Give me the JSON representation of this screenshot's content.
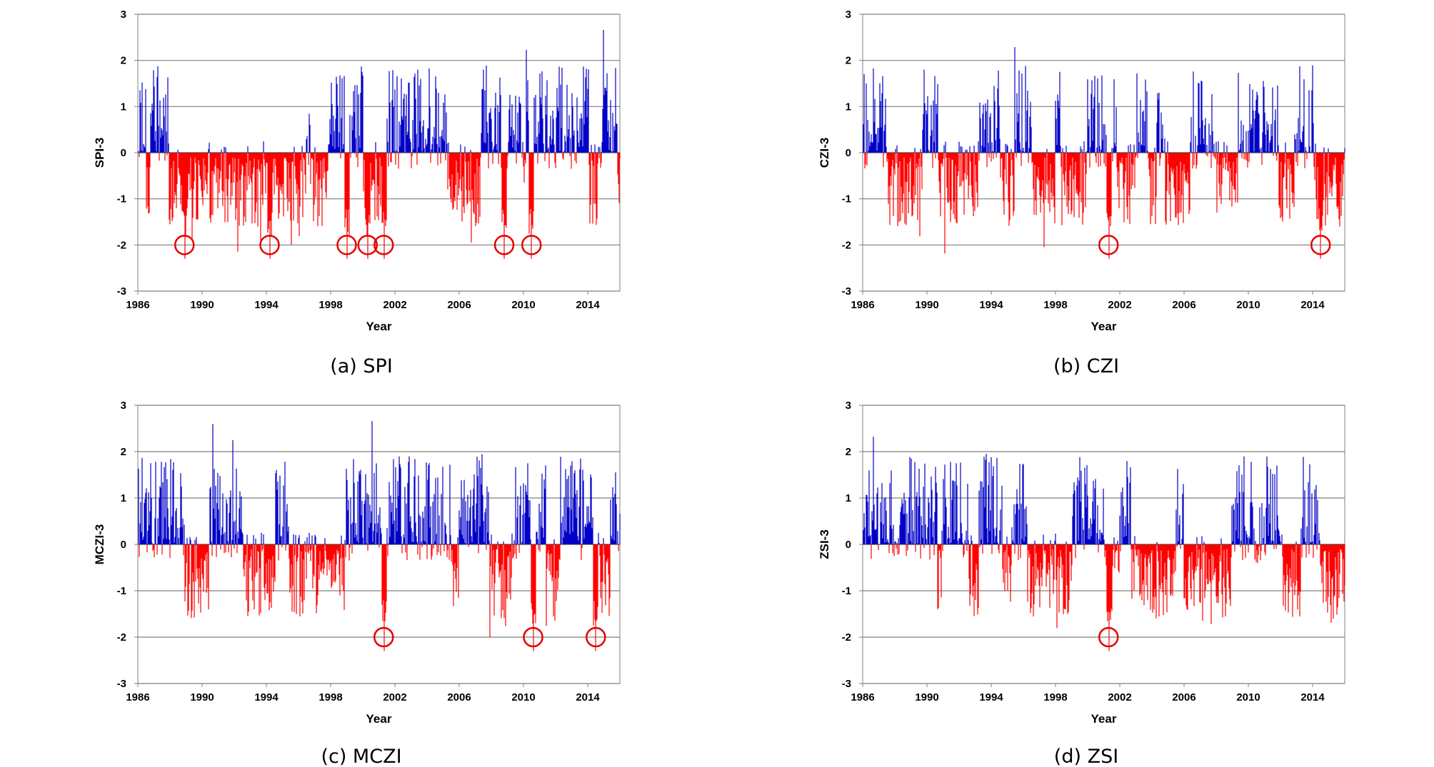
{
  "figure": {
    "captions": [
      "(a) SPI",
      "(b) CZI",
      "(c) MCZI",
      "(d) ZSI"
    ]
  },
  "chart_data": [
    {
      "type": "bar",
      "title": "(a) SPI",
      "xlabel": "Year",
      "ylabel": "SPI-3",
      "x_start": 1986.0,
      "x_end": 2016.0,
      "x_ticks": [
        1986,
        1990,
        1994,
        1998,
        2002,
        2006,
        2010,
        2014
      ],
      "ylim": [
        -3,
        3
      ],
      "y_ticks": [
        3,
        2,
        1,
        0,
        -1,
        -2,
        -3
      ],
      "grid": true,
      "colors": {
        "positive": "#0000c8",
        "negative": "#ff0000",
        "marker": "#e60000"
      },
      "circled_events": [
        1988.9,
        1994.2,
        1999.0,
        2000.3,
        2001.3,
        2008.8,
        2010.5
      ],
      "circle_y": -2.0,
      "seed": 1
    },
    {
      "type": "bar",
      "title": "(b) CZI",
      "xlabel": "Year",
      "ylabel": "CZI-3",
      "x_start": 1986.0,
      "x_end": 2016.0,
      "x_ticks": [
        1986,
        1990,
        1994,
        1998,
        2002,
        2006,
        2010,
        2014
      ],
      "ylim": [
        -3,
        3
      ],
      "y_ticks": [
        3,
        2,
        1,
        0,
        -1,
        -2,
        -3
      ],
      "grid": true,
      "colors": {
        "positive": "#0000c8",
        "negative": "#ff0000",
        "marker": "#e60000"
      },
      "circled_events": [
        2001.3,
        2014.5
      ],
      "circle_y": -2.0,
      "seed": 2
    },
    {
      "type": "bar",
      "title": "(c) MCZI",
      "xlabel": "Year",
      "ylabel": "MCZI-3",
      "x_start": 1986.0,
      "x_end": 2016.0,
      "x_ticks": [
        1986,
        1990,
        1994,
        1998,
        2002,
        2006,
        2010,
        2014
      ],
      "ylim": [
        -3,
        3
      ],
      "y_ticks": [
        3,
        2,
        1,
        0,
        -1,
        -2,
        -3
      ],
      "grid": true,
      "colors": {
        "positive": "#0000c8",
        "negative": "#ff0000",
        "marker": "#e60000"
      },
      "circled_events": [
        2001.3,
        2010.6,
        2014.5
      ],
      "circle_y": -2.0,
      "seed": 3
    },
    {
      "type": "bar",
      "title": "(d) ZSI",
      "xlabel": "Year",
      "ylabel": "ZSI-3",
      "x_start": 1986.0,
      "x_end": 2016.0,
      "x_ticks": [
        1986,
        1990,
        1994,
        1998,
        2002,
        2006,
        2010,
        2014
      ],
      "ylim": [
        -3,
        3
      ],
      "y_ticks": [
        3,
        2,
        1,
        0,
        -1,
        -2,
        -3
      ],
      "grid": true,
      "colors": {
        "positive": "#0000c8",
        "negative": "#ff0000",
        "marker": "#e60000"
      },
      "circled_events": [
        2001.3
      ],
      "circle_y": -2.0,
      "seed": 4
    }
  ]
}
